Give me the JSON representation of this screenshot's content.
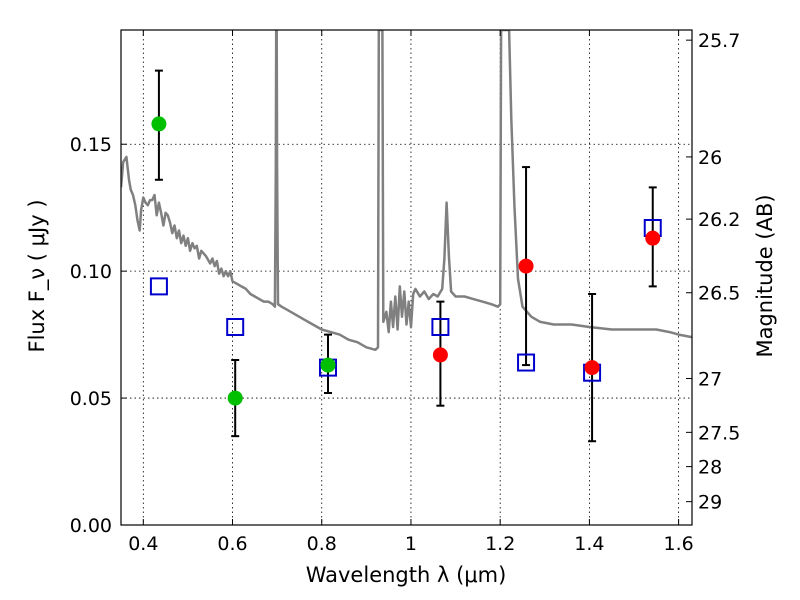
{
  "chart_data": {
    "type": "scatter",
    "xlabel": "Wavelength  λ (μm)",
    "ylabel": "Flux  F_ν  ( μJy )",
    "y2label": "Magnitude (AB)",
    "xlim": [
      0.35,
      1.63
    ],
    "ylim": [
      0.0,
      0.195
    ],
    "grid": true,
    "x_ticks": [
      0.4,
      0.6,
      0.8,
      1.0,
      1.2,
      1.4,
      1.6
    ],
    "x_tick_labels": [
      "0.4",
      "0.6",
      "0.8",
      "1",
      "1.2",
      "1.4",
      "1.6"
    ],
    "y_ticks": [
      0.0,
      0.05,
      0.1,
      0.15
    ],
    "y_tick_labels": [
      "0.00",
      "0.05",
      "0.10",
      "0.15"
    ],
    "y2_ticks": [
      {
        "label": "25.7",
        "flux": 0.191
      },
      {
        "label": "26",
        "flux": 0.145
      },
      {
        "label": "26.2",
        "flux": 0.1205
      },
      {
        "label": "26.5",
        "flux": 0.0915
      },
      {
        "label": "27",
        "flux": 0.0577
      },
      {
        "label": "27.5",
        "flux": 0.0365
      },
      {
        "label": "28",
        "flux": 0.023
      },
      {
        "label": "29",
        "flux": 0.0092
      }
    ],
    "series": [
      {
        "color": "#00bf00",
        "marker": "circle",
        "points": [
          {
            "x": 0.435,
            "y": 0.158,
            "err_low": 0.022,
            "err_high": 0.021
          },
          {
            "x": 0.606,
            "y": 0.05,
            "err_low": 0.015,
            "err_high": 0.015
          },
          {
            "x": 0.814,
            "y": 0.063,
            "err_low": 0.011,
            "err_high": 0.012
          }
        ]
      },
      {
        "color": "#ff0000",
        "marker": "circle",
        "points": [
          {
            "x": 1.066,
            "y": 0.067,
            "err_low": 0.02,
            "err_high": 0.021
          },
          {
            "x": 1.258,
            "y": 0.102,
            "err_low": 0.039,
            "err_high": 0.039
          },
          {
            "x": 1.406,
            "y": 0.062,
            "err_low": 0.029,
            "err_high": 0.029
          },
          {
            "x": 1.542,
            "y": 0.113,
            "err_low": 0.019,
            "err_high": 0.02
          }
        ]
      },
      {
        "color": "#0000cc",
        "marker": "open-square",
        "points": [
          {
            "x": 0.435,
            "y": 0.094
          },
          {
            "x": 0.606,
            "y": 0.078
          },
          {
            "x": 0.814,
            "y": 0.062
          },
          {
            "x": 1.066,
            "y": 0.078
          },
          {
            "x": 1.258,
            "y": 0.064
          },
          {
            "x": 1.406,
            "y": 0.06
          },
          {
            "x": 1.542,
            "y": 0.117
          }
        ]
      },
      {
        "color": "#808080",
        "marker": "line",
        "points": [
          [
            0.35,
            0.133
          ],
          [
            0.355,
            0.143
          ],
          [
            0.362,
            0.145
          ],
          [
            0.368,
            0.136
          ],
          [
            0.372,
            0.132
          ],
          [
            0.377,
            0.13
          ],
          [
            0.382,
            0.126
          ],
          [
            0.387,
            0.12
          ],
          [
            0.392,
            0.116
          ],
          [
            0.395,
            0.124
          ],
          [
            0.4,
            0.129
          ],
          [
            0.405,
            0.127
          ],
          [
            0.41,
            0.126
          ],
          [
            0.415,
            0.128
          ],
          [
            0.42,
            0.128
          ],
          [
            0.425,
            0.13
          ],
          [
            0.43,
            0.122
          ],
          [
            0.435,
            0.127
          ],
          [
            0.44,
            0.123
          ],
          [
            0.445,
            0.118
          ],
          [
            0.45,
            0.123
          ],
          [
            0.455,
            0.122
          ],
          [
            0.46,
            0.119
          ],
          [
            0.465,
            0.115
          ],
          [
            0.47,
            0.118
          ],
          [
            0.475,
            0.113
          ],
          [
            0.48,
            0.116
          ],
          [
            0.485,
            0.111
          ],
          [
            0.49,
            0.114
          ],
          [
            0.495,
            0.11
          ],
          [
            0.5,
            0.113
          ],
          [
            0.505,
            0.108
          ],
          [
            0.51,
            0.111
          ],
          [
            0.515,
            0.109
          ],
          [
            0.52,
            0.11
          ],
          [
            0.525,
            0.105
          ],
          [
            0.53,
            0.108
          ],
          [
            0.54,
            0.106
          ],
          [
            0.55,
            0.103
          ],
          [
            0.555,
            0.105
          ],
          [
            0.56,
            0.102
          ],
          [
            0.565,
            0.104
          ],
          [
            0.57,
            0.099
          ],
          [
            0.575,
            0.101
          ],
          [
            0.58,
            0.098
          ],
          [
            0.585,
            0.1
          ],
          [
            0.59,
            0.098
          ],
          [
            0.595,
            0.1
          ],
          [
            0.6,
            0.096
          ],
          [
            0.61,
            0.095
          ],
          [
            0.62,
            0.094
          ],
          [
            0.63,
            0.093
          ],
          [
            0.64,
            0.091
          ],
          [
            0.65,
            0.09
          ],
          [
            0.66,
            0.089
          ],
          [
            0.67,
            0.088
          ],
          [
            0.68,
            0.088
          ],
          [
            0.69,
            0.087
          ],
          [
            0.695,
            0.086
          ],
          [
            0.697,
            0.14
          ],
          [
            0.698,
            0.195
          ],
          [
            0.699,
            0.195
          ],
          [
            0.7,
            0.14
          ],
          [
            0.702,
            0.087
          ],
          [
            0.71,
            0.086
          ],
          [
            0.72,
            0.085
          ],
          [
            0.74,
            0.083
          ],
          [
            0.76,
            0.081
          ],
          [
            0.78,
            0.079
          ],
          [
            0.8,
            0.077
          ],
          [
            0.82,
            0.076
          ],
          [
            0.84,
            0.075
          ],
          [
            0.86,
            0.073
          ],
          [
            0.88,
            0.072
          ],
          [
            0.9,
            0.07
          ],
          [
            0.92,
            0.069
          ],
          [
            0.926,
            0.07
          ],
          [
            0.928,
            0.195
          ],
          [
            0.936,
            0.195
          ],
          [
            0.938,
            0.08
          ],
          [
            0.945,
            0.084
          ],
          [
            0.95,
            0.076
          ],
          [
            0.955,
            0.088
          ],
          [
            0.96,
            0.078
          ],
          [
            0.965,
            0.09
          ],
          [
            0.97,
            0.077
          ],
          [
            0.975,
            0.094
          ],
          [
            0.98,
            0.082
          ],
          [
            0.985,
            0.092
          ],
          [
            0.99,
            0.079
          ],
          [
            0.995,
            0.088
          ],
          [
            1.0,
            0.078
          ],
          [
            1.005,
            0.091
          ],
          [
            1.01,
            0.093
          ],
          [
            1.02,
            0.09
          ],
          [
            1.03,
            0.092
          ],
          [
            1.04,
            0.089
          ],
          [
            1.05,
            0.091
          ],
          [
            1.06,
            0.09
          ],
          [
            1.07,
            0.093
          ],
          [
            1.075,
            0.105
          ],
          [
            1.08,
            0.127
          ],
          [
            1.085,
            0.106
          ],
          [
            1.09,
            0.092
          ],
          [
            1.1,
            0.09
          ],
          [
            1.12,
            0.09
          ],
          [
            1.14,
            0.089
          ],
          [
            1.16,
            0.088
          ],
          [
            1.18,
            0.087
          ],
          [
            1.195,
            0.086
          ],
          [
            1.2,
            0.087
          ],
          [
            1.202,
            0.195
          ],
          [
            1.22,
            0.195
          ],
          [
            1.225,
            0.16
          ],
          [
            1.232,
            0.125
          ],
          [
            1.24,
            0.097
          ],
          [
            1.25,
            0.086
          ],
          [
            1.27,
            0.082
          ],
          [
            1.29,
            0.08
          ],
          [
            1.32,
            0.079
          ],
          [
            1.36,
            0.079
          ],
          [
            1.4,
            0.078
          ],
          [
            1.45,
            0.077
          ],
          [
            1.5,
            0.077
          ],
          [
            1.55,
            0.077
          ],
          [
            1.58,
            0.076
          ],
          [
            1.6,
            0.075
          ],
          [
            1.63,
            0.074
          ]
        ]
      }
    ]
  }
}
